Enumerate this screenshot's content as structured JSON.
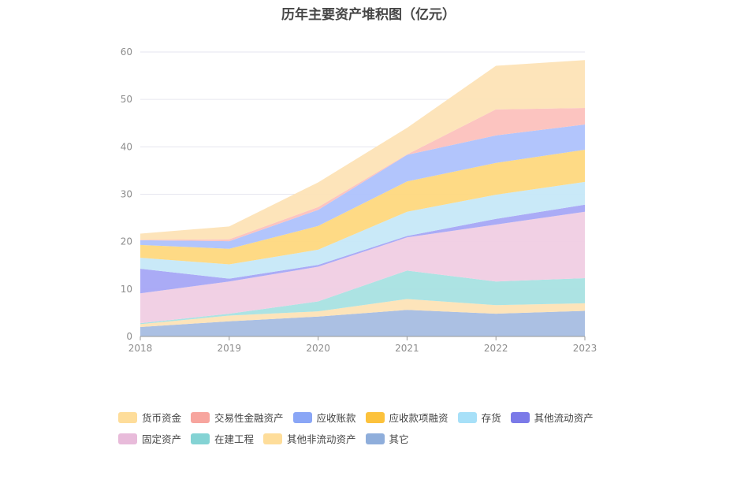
{
  "chart_data": {
    "type": "area",
    "title": "历年主要资产堆积图（亿元）",
    "x": [
      "2018",
      "2019",
      "2020",
      "2021",
      "2022",
      "2023"
    ],
    "ylim": [
      0,
      60
    ],
    "yticks": [
      0,
      10,
      20,
      30,
      40,
      50,
      60
    ],
    "grid": true,
    "legend_position": "bottom",
    "stacked": true,
    "series": [
      {
        "name": "其它",
        "color": "#a7bde2",
        "values": [
          2.0,
          3.2,
          4.2,
          5.6,
          4.8,
          5.4
        ]
      },
      {
        "name": "其他非流动资产",
        "color": "#fde3b6",
        "values": [
          0.6,
          1.2,
          1.1,
          2.3,
          1.8,
          1.6
        ]
      },
      {
        "name": "在建工程",
        "color": "#a8e2e2",
        "values": [
          0.2,
          0.4,
          2.1,
          6.0,
          5.0,
          5.3
        ]
      },
      {
        "name": "固定资产",
        "color": "#f0cde3",
        "values": [
          6.3,
          6.8,
          7.3,
          7.0,
          12.0,
          14.0
        ]
      },
      {
        "name": "其他流动资产",
        "color": "#a5a7f5",
        "values": [
          5.2,
          0.6,
          0.4,
          0.3,
          1.2,
          1.5
        ]
      },
      {
        "name": "存货",
        "color": "#c6e8f8",
        "values": [
          2.3,
          3.0,
          3.2,
          5.1,
          5.1,
          4.8
        ]
      },
      {
        "name": "应收款项融资",
        "color": "#fed87e",
        "values": [
          2.7,
          3.3,
          5.0,
          6.4,
          6.7,
          6.8
        ]
      },
      {
        "name": "应收账款",
        "color": "#aec2fc",
        "values": [
          1.0,
          1.6,
          3.4,
          5.6,
          5.8,
          5.3
        ]
      },
      {
        "name": "交易性金融资产",
        "color": "#fcc1bd",
        "values": [
          0.1,
          0.4,
          0.6,
          0.1,
          5.5,
          3.5
        ]
      },
      {
        "name": "货币资金",
        "color": "#fde3b6",
        "values": [
          1.3,
          2.7,
          5.2,
          5.6,
          9.2,
          10.1
        ]
      }
    ]
  },
  "legend": [
    {
      "name": "货币资金",
      "color": "#fedd9a"
    },
    {
      "name": "交易性金融资产",
      "color": "#f7a59e"
    },
    {
      "name": "应收账款",
      "color": "#8aa6f6"
    },
    {
      "name": "应收款项融资",
      "color": "#fcc23c"
    },
    {
      "name": "存货",
      "color": "#a7e0f8"
    },
    {
      "name": "其他流动资产",
      "color": "#7b7ae8"
    },
    {
      "name": "固定资产",
      "color": "#e8bbda"
    },
    {
      "name": "在建工程",
      "color": "#84d3d4"
    },
    {
      "name": "其他非流动资产",
      "color": "#fedd9a"
    },
    {
      "name": "其它",
      "color": "#8faedb"
    }
  ]
}
